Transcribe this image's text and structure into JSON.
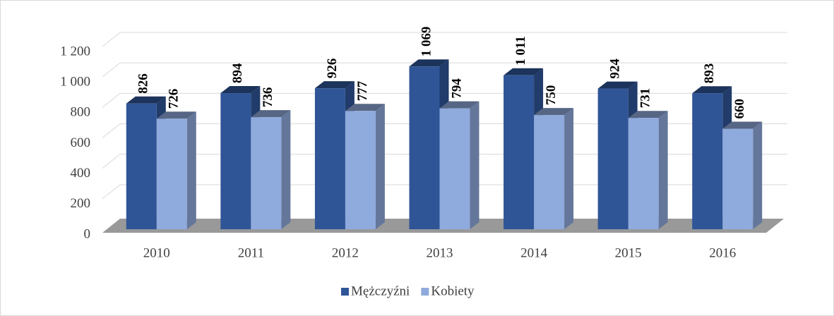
{
  "chart_data": {
    "type": "bar3d",
    "categories": [
      "2010",
      "2011",
      "2012",
      "2013",
      "2014",
      "2015",
      "2016"
    ],
    "series": [
      {
        "name": "Mężczyźni",
        "color": "#2f5597",
        "values": [
          826,
          894,
          926,
          1069,
          1011,
          924,
          893
        ],
        "value_labels": [
          "826",
          "894",
          "926",
          "1 069",
          "1 011",
          "924",
          "893"
        ]
      },
      {
        "name": "Kobiety",
        "color": "#8faadc",
        "values": [
          726,
          736,
          777,
          794,
          750,
          731,
          660
        ],
        "value_labels": [
          "726",
          "736",
          "777",
          "794",
          "750",
          "731",
          "660"
        ]
      }
    ],
    "ylim": [
      0,
      1200
    ],
    "yticks": [
      0,
      200,
      400,
      600,
      800,
      {
        "value": 1000,
        "label": "1 000"
      },
      {
        "value": 1200,
        "label": "1 200"
      }
    ],
    "grid": true,
    "legend": "bottom"
  }
}
